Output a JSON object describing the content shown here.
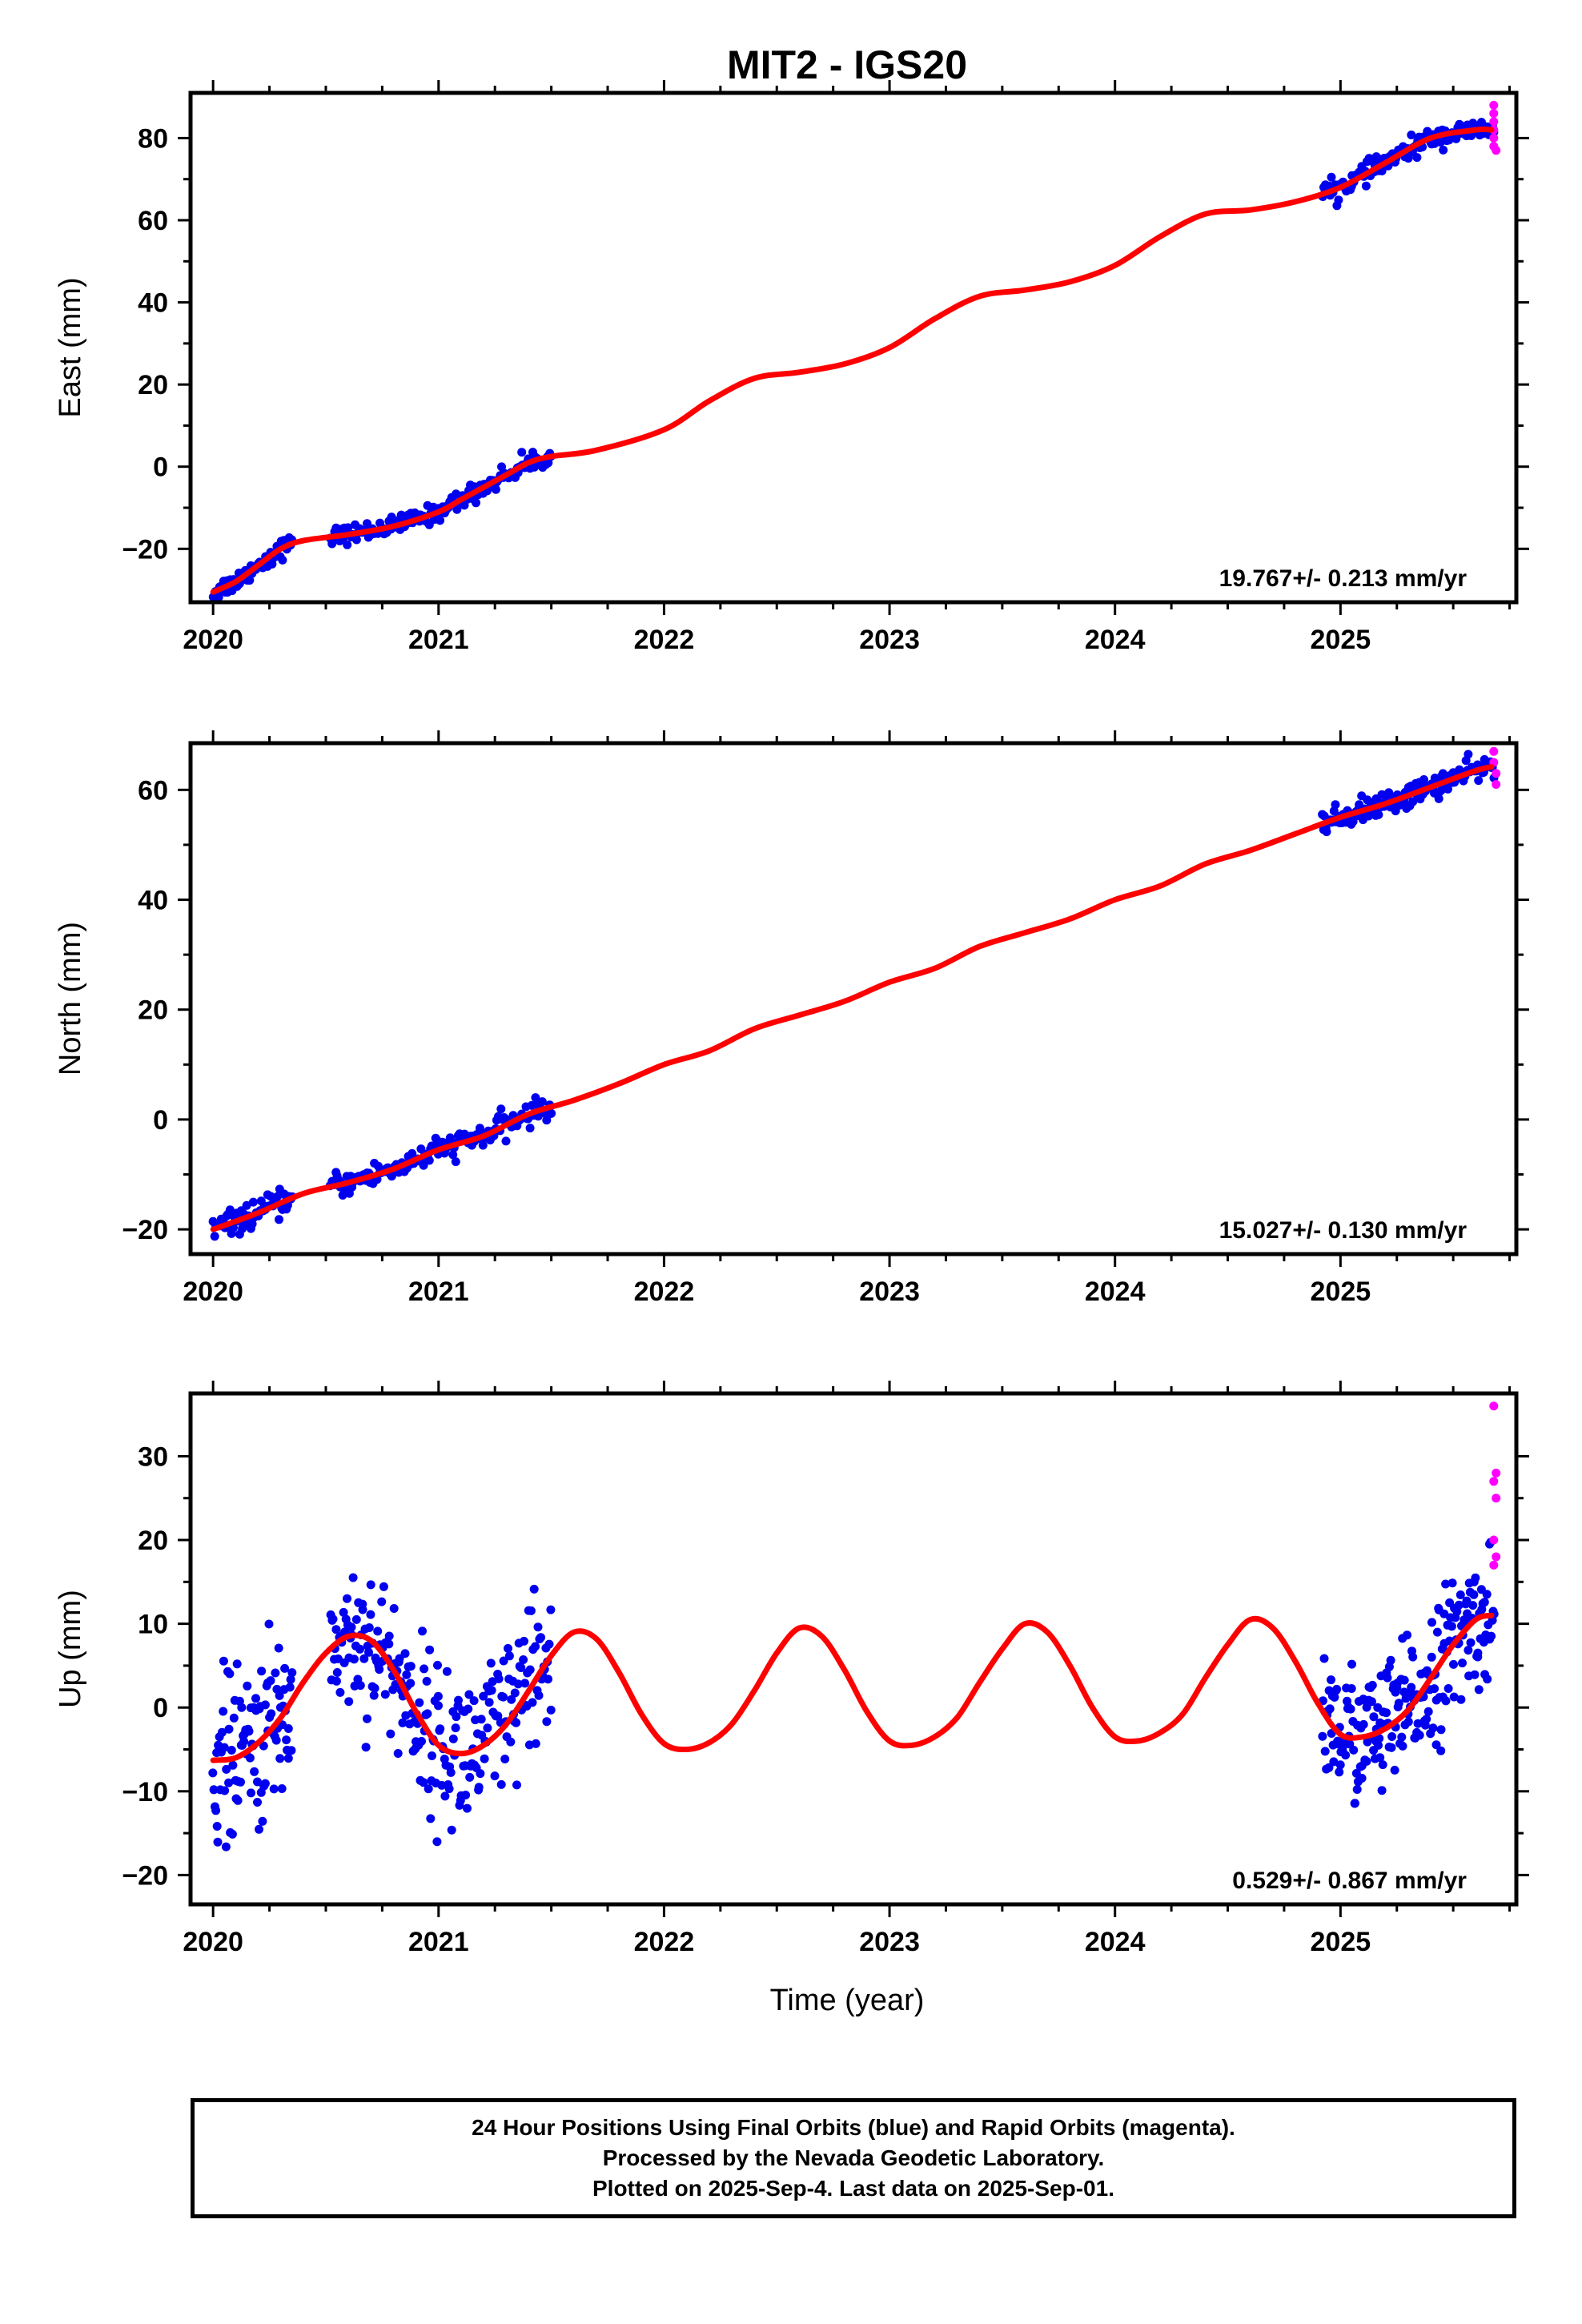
{
  "title": "MIT2 - IGS20",
  "x_axis_label": "Time (year)",
  "footer": {
    "lines": [
      "24 Hour Positions Using Final Orbits (blue) and Rapid Orbits (magenta).",
      "Processed by the Nevada Geodetic Laboratory.",
      "Plotted on 2025-Sep-4. Last data on 2025-Sep-01."
    ]
  },
  "colors": {
    "final": "#0000ee",
    "rapid": "#ff00ff",
    "model": "#ff0000",
    "axis": "#000000"
  },
  "chart_data": [
    {
      "type": "scatter",
      "component": "east",
      "ylabel": "East (mm)",
      "rate_label": "19.767+/- 0.213 mm/yr",
      "xlim": [
        2019.9,
        2025.78
      ],
      "ylim": [
        -33,
        91
      ],
      "x_ticks": [
        2020,
        2021,
        2022,
        2023,
        2024,
        2025
      ],
      "y_ticks": [
        -20,
        0,
        20,
        40,
        60,
        80
      ],
      "y_tick_labels": [
        "−20",
        "0",
        "20",
        "40",
        "60",
        "80"
      ],
      "model_curve": [
        [
          2020.0,
          -30.5
        ],
        [
          2020.1,
          -28
        ],
        [
          2020.2,
          -24
        ],
        [
          2020.3,
          -20
        ],
        [
          2020.4,
          -18
        ],
        [
          2020.6,
          -16.5
        ],
        [
          2020.8,
          -14.5
        ],
        [
          2021.0,
          -11
        ],
        [
          2021.1,
          -8
        ],
        [
          2021.2,
          -5
        ],
        [
          2021.3,
          -2
        ],
        [
          2021.4,
          1
        ],
        [
          2021.5,
          2.5
        ],
        [
          2021.7,
          4
        ],
        [
          2022.0,
          9
        ],
        [
          2022.2,
          16
        ],
        [
          2022.4,
          21.5
        ],
        [
          2022.6,
          23
        ],
        [
          2022.8,
          25
        ],
        [
          2023.0,
          29
        ],
        [
          2023.2,
          36
        ],
        [
          2023.4,
          41.5
        ],
        [
          2023.6,
          43
        ],
        [
          2023.8,
          45
        ],
        [
          2024.0,
          49
        ],
        [
          2024.2,
          56
        ],
        [
          2024.4,
          61.5
        ],
        [
          2024.6,
          62.5
        ],
        [
          2024.8,
          64.5
        ],
        [
          2025.0,
          68
        ],
        [
          2025.2,
          74
        ],
        [
          2025.4,
          80
        ],
        [
          2025.6,
          82
        ],
        [
          2025.67,
          82
        ]
      ],
      "final_data": [
        {
          "x_range": [
            2020.0,
            2020.35
          ],
          "y_start": -30.5,
          "y_end": -18.5,
          "n": 60,
          "spread": 1.2
        },
        {
          "x_range": [
            2020.52,
            2021.0
          ],
          "y_start": -16,
          "y_end": -11,
          "n": 80,
          "spread": 1.1
        },
        {
          "x_range": [
            2021.0,
            2021.5
          ],
          "y_start": -11,
          "y_end": 3,
          "n": 80,
          "spread": 1.2
        },
        {
          "x_range": [
            2024.92,
            2025.68
          ],
          "y_start": 65,
          "y_end": 82,
          "n": 150,
          "spread": 1.2
        }
      ],
      "rapid_data": [
        [
          2025.68,
          88
        ],
        [
          2025.68,
          86
        ],
        [
          2025.68,
          84
        ],
        [
          2025.68,
          82
        ],
        [
          2025.68,
          80
        ],
        [
          2025.68,
          78
        ],
        [
          2025.69,
          77
        ]
      ]
    },
    {
      "type": "scatter",
      "component": "north",
      "ylabel": "North (mm)",
      "rate_label": "15.027+/- 0.130 mm/yr",
      "xlim": [
        2019.9,
        2025.78
      ],
      "ylim": [
        -24.5,
        68.5
      ],
      "x_ticks": [
        2020,
        2021,
        2022,
        2023,
        2024,
        2025
      ],
      "y_ticks": [
        -20,
        0,
        20,
        40,
        60
      ],
      "y_tick_labels": [
        "−20",
        "0",
        "20",
        "40",
        "60"
      ],
      "model_curve": [
        [
          2020.0,
          -20
        ],
        [
          2020.2,
          -17
        ],
        [
          2020.4,
          -13.5
        ],
        [
          2020.6,
          -11.5
        ],
        [
          2020.8,
          -9
        ],
        [
          2021.0,
          -5.5
        ],
        [
          2021.2,
          -3
        ],
        [
          2021.4,
          1
        ],
        [
          2021.6,
          3.5
        ],
        [
          2021.8,
          6.5
        ],
        [
          2022.0,
          10
        ],
        [
          2022.2,
          12.5
        ],
        [
          2022.4,
          16.5
        ],
        [
          2022.6,
          19
        ],
        [
          2022.8,
          21.5
        ],
        [
          2023.0,
          25
        ],
        [
          2023.2,
          27.5
        ],
        [
          2023.4,
          31.5
        ],
        [
          2023.6,
          34
        ],
        [
          2023.8,
          36.5
        ],
        [
          2024.0,
          40
        ],
        [
          2024.2,
          42.5
        ],
        [
          2024.4,
          46.5
        ],
        [
          2024.6,
          49
        ],
        [
          2024.8,
          52
        ],
        [
          2025.0,
          55
        ],
        [
          2025.2,
          57.5
        ],
        [
          2025.4,
          60.5
        ],
        [
          2025.6,
          63.5
        ],
        [
          2025.67,
          64.2
        ]
      ],
      "final_data": [
        {
          "x_range": [
            2020.0,
            2020.35
          ],
          "y_start": -20,
          "y_end": -13,
          "n": 60,
          "spread": 1.1
        },
        {
          "x_range": [
            2020.52,
            2021.0
          ],
          "y_start": -10.5,
          "y_end": -5,
          "n": 80,
          "spread": 1.1
        },
        {
          "x_range": [
            2021.0,
            2021.5
          ],
          "y_start": -5,
          "y_end": 3,
          "n": 80,
          "spread": 1.1
        },
        {
          "x_range": [
            2024.92,
            2025.68
          ],
          "y_start": 54,
          "y_end": 64,
          "n": 150,
          "spread": 1.1
        }
      ],
      "rapid_data": [
        [
          2025.68,
          67
        ],
        [
          2025.68,
          65
        ],
        [
          2025.69,
          63
        ],
        [
          2025.69,
          61
        ]
      ]
    },
    {
      "type": "scatter",
      "component": "up",
      "ylabel": "Up (mm)",
      "rate_label": "0.529+/- 0.867 mm/yr",
      "xlim": [
        2019.9,
        2025.78
      ],
      "ylim": [
        -23.5,
        37.5
      ],
      "x_ticks": [
        2020,
        2021,
        2022,
        2023,
        2024,
        2025
      ],
      "y_ticks": [
        -20,
        -10,
        0,
        10,
        20,
        30
      ],
      "y_tick_labels": [
        "−20",
        "−10",
        "0",
        "10",
        "20",
        "30"
      ],
      "model_curve": [
        [
          2020.0,
          -6.3
        ],
        [
          2020.1,
          -6
        ],
        [
          2020.2,
          -4.2
        ],
        [
          2020.3,
          -1.2
        ],
        [
          2020.4,
          3
        ],
        [
          2020.5,
          6.5
        ],
        [
          2020.6,
          8.5
        ],
        [
          2020.7,
          8
        ],
        [
          2020.8,
          4.5
        ],
        [
          2020.9,
          -0.5
        ],
        [
          2021.0,
          -4.5
        ],
        [
          2021.1,
          -5.5
        ],
        [
          2021.2,
          -4.5
        ],
        [
          2021.3,
          -2
        ],
        [
          2021.4,
          2
        ],
        [
          2021.5,
          6.2
        ],
        [
          2021.6,
          9
        ],
        [
          2021.7,
          8.2
        ],
        [
          2021.8,
          4.2
        ],
        [
          2021.9,
          -0.8
        ],
        [
          2022.0,
          -4.3
        ],
        [
          2022.1,
          -5
        ],
        [
          2022.2,
          -4.2
        ],
        [
          2022.3,
          -2
        ],
        [
          2022.4,
          2
        ],
        [
          2022.5,
          6.5
        ],
        [
          2022.6,
          9.5
        ],
        [
          2022.7,
          8.5
        ],
        [
          2022.8,
          4.5
        ],
        [
          2022.9,
          -0.5
        ],
        [
          2023.0,
          -4
        ],
        [
          2023.1,
          -4.5
        ],
        [
          2023.2,
          -3.5
        ],
        [
          2023.3,
          -1.2
        ],
        [
          2023.4,
          3
        ],
        [
          2023.5,
          7
        ],
        [
          2023.6,
          10
        ],
        [
          2023.7,
          9
        ],
        [
          2023.8,
          5
        ],
        [
          2023.9,
          0
        ],
        [
          2024.0,
          -3.5
        ],
        [
          2024.1,
          -4
        ],
        [
          2024.2,
          -3
        ],
        [
          2024.3,
          -0.8
        ],
        [
          2024.4,
          3.5
        ],
        [
          2024.5,
          7.5
        ],
        [
          2024.6,
          10.5
        ],
        [
          2024.7,
          9.5
        ],
        [
          2024.8,
          5.5
        ],
        [
          2024.9,
          0.5
        ],
        [
          2025.0,
          -3.2
        ],
        [
          2025.1,
          -3.5
        ],
        [
          2025.2,
          -2.5
        ],
        [
          2025.3,
          -0.3
        ],
        [
          2025.4,
          3.5
        ],
        [
          2025.5,
          7.5
        ],
        [
          2025.6,
          10.5
        ],
        [
          2025.67,
          11
        ]
      ],
      "final_data": [
        {
          "x_range": [
            2020.0,
            2020.35
          ],
          "y_start": -6,
          "y_end": -1,
          "n": 100,
          "spread": 5
        },
        {
          "x_range": [
            2020.52,
            2021.0
          ],
          "y_start": 8,
          "y_end": -4,
          "n": 120,
          "spread": 4.5
        },
        {
          "x_range": [
            2021.0,
            2021.5
          ],
          "y_start": -5,
          "y_end": 6,
          "n": 120,
          "spread": 5
        },
        {
          "x_range": [
            2024.92,
            2025.68
          ],
          "y_start": -3,
          "y_end": 11,
          "n": 220,
          "spread": 4
        }
      ],
      "rapid_data": [
        [
          2025.68,
          36
        ],
        [
          2025.69,
          28
        ],
        [
          2025.68,
          27
        ],
        [
          2025.69,
          25
        ],
        [
          2025.68,
          20
        ],
        [
          2025.69,
          18
        ],
        [
          2025.68,
          17
        ]
      ]
    }
  ]
}
